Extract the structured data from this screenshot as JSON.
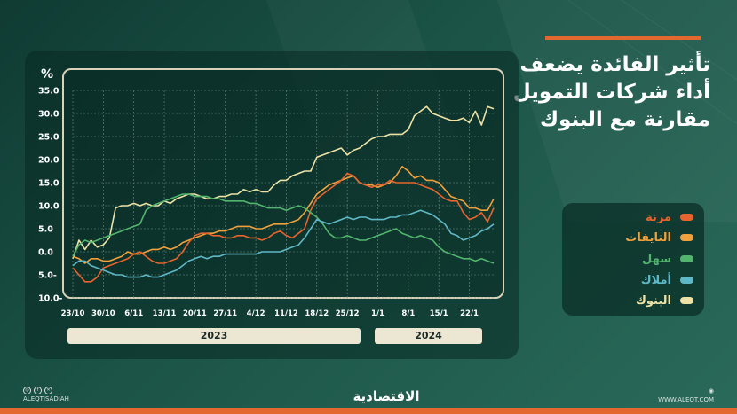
{
  "title_lines": [
    "تأثير الفائدة يضعف",
    "أداء شركات التمويل",
    "مقارنة مع البنوك"
  ],
  "brand": "الاقتصادية",
  "footer": {
    "handle": "ALEQTISADIAH",
    "website": "WWW.ALEQT.COM"
  },
  "colors": {
    "title_bar": "#e2682f",
    "frame": "#d8d2b8",
    "grid": "#6f8f84",
    "axis_text": "#ffffff"
  },
  "chart_data": {
    "type": "line",
    "ylabel": "%",
    "ylim": [
      -10,
      35
    ],
    "yticks": [
      35,
      30,
      25,
      20,
      15,
      10,
      5,
      0,
      -5,
      -10
    ],
    "ytick_labels": [
      "35.0",
      "30.0",
      "25.0",
      "20.0",
      "15.0",
      "10.0",
      "5.0",
      "0.0",
      "5.0-",
      "10.0-"
    ],
    "x_tick_labels": [
      "23/10",
      "30/10",
      "6/11",
      "13/11",
      "20/11",
      "27/11",
      "4/12",
      "11/12",
      "18/12",
      "25/12",
      "1/1",
      "8/1",
      "15/1",
      "22/1"
    ],
    "x_tick_positions": [
      0,
      5,
      10,
      15,
      20,
      25,
      30,
      35,
      40,
      45,
      50,
      55,
      60,
      65
    ],
    "x_max": 69,
    "years": [
      {
        "label": "2023",
        "from": 0,
        "to": 49
      },
      {
        "label": "2024",
        "from": 51,
        "to": 69
      }
    ],
    "grid": true,
    "legend_position": "right",
    "series": [
      {
        "name": "البنوك",
        "color": "#ece2a6",
        "values": [
          -1.5,
          2.5,
          0.5,
          2.5,
          1.0,
          1.5,
          3.0,
          9.5,
          10.0,
          10.0,
          10.5,
          10.0,
          10.5,
          10.0,
          10.0,
          11.0,
          10.5,
          11.5,
          12.0,
          12.5,
          12.5,
          12.0,
          11.5,
          11.5,
          12.0,
          12.0,
          12.5,
          12.5,
          13.5,
          13.0,
          13.5,
          13.0,
          13.0,
          14.5,
          15.5,
          15.5,
          16.5,
          17.0,
          17.5,
          17.5,
          20.5,
          21.0,
          21.5,
          22.0,
          22.5,
          21.0,
          22.0,
          22.5,
          23.5,
          24.5,
          25.0,
          25.0,
          25.5,
          25.5,
          25.5,
          26.5,
          29.5,
          30.5,
          31.5,
          30.0,
          29.5,
          29.0,
          28.5,
          28.5,
          29.0,
          28.0,
          30.5,
          27.5,
          31.5,
          31.0
        ]
      },
      {
        "name": "النايفات",
        "color": "#f0a03c",
        "values": [
          -1.0,
          -1.5,
          -2.5,
          -1.5,
          -1.5,
          -2.0,
          -2.0,
          -1.5,
          -1.0,
          0.0,
          -0.5,
          -0.5,
          0.0,
          0.5,
          0.5,
          1.0,
          0.5,
          1.0,
          2.0,
          2.5,
          3.0,
          3.5,
          4.0,
          4.0,
          4.5,
          4.5,
          5.0,
          5.5,
          5.5,
          5.5,
          5.0,
          5.0,
          5.5,
          6.0,
          6.0,
          6.0,
          6.5,
          7.0,
          8.5,
          10.5,
          12.5,
          13.5,
          14.5,
          15.0,
          15.5,
          16.0,
          16.5,
          15.0,
          14.5,
          14.5,
          14.0,
          14.5,
          15.0,
          16.5,
          18.5,
          17.5,
          16.0,
          16.5,
          15.5,
          15.5,
          15.0,
          13.5,
          12.0,
          11.5,
          11.0,
          9.5,
          9.5,
          9.0,
          9.0,
          11.5
        ]
      },
      {
        "name": "مرنة",
        "color": "#e8632e",
        "values": [
          -3.5,
          -5.0,
          -6.5,
          -6.5,
          -5.5,
          -3.5,
          -3.0,
          -2.5,
          -2.0,
          -1.5,
          -0.5,
          0.0,
          -1.0,
          -2.0,
          -2.5,
          -2.5,
          -2.0,
          -1.5,
          0.0,
          2.0,
          3.5,
          4.0,
          4.0,
          3.5,
          3.5,
          3.0,
          3.0,
          3.5,
          3.5,
          3.0,
          3.0,
          2.5,
          3.0,
          4.0,
          4.5,
          3.5,
          3.0,
          4.0,
          5.0,
          9.0,
          11.5,
          12.5,
          13.5,
          14.5,
          15.5,
          17.0,
          16.5,
          15.0,
          14.5,
          14.0,
          14.5,
          14.5,
          15.5,
          15.0,
          15.0,
          15.0,
          15.0,
          14.5,
          14.0,
          13.5,
          12.5,
          11.5,
          11.0,
          11.0,
          8.5,
          7.0,
          7.5,
          8.5,
          6.5,
          9.5
        ]
      },
      {
        "name": "سهل",
        "color": "#52b46e",
        "values": [
          -1.0,
          1.5,
          2.5,
          2.0,
          2.5,
          3.0,
          3.5,
          4.0,
          4.5,
          5.0,
          5.5,
          6.0,
          9.0,
          10.0,
          10.5,
          11.0,
          11.5,
          12.0,
          12.5,
          12.5,
          12.0,
          12.0,
          12.0,
          11.5,
          11.5,
          11.0,
          11.0,
          11.0,
          11.0,
          10.5,
          10.5,
          10.0,
          9.5,
          9.5,
          9.5,
          9.0,
          9.5,
          10.0,
          9.5,
          8.5,
          7.5,
          6.0,
          4.0,
          3.0,
          3.0,
          3.5,
          3.0,
          2.5,
          2.5,
          3.0,
          3.5,
          4.0,
          4.5,
          5.0,
          4.0,
          3.5,
          3.0,
          3.5,
          3.0,
          2.5,
          1.0,
          0.0,
          -0.5,
          -1.0,
          -1.5,
          -1.5,
          -2.0,
          -1.5,
          -2.0,
          -2.5
        ]
      },
      {
        "name": "أملاك",
        "color": "#5fb8c6",
        "values": [
          -3.0,
          -2.0,
          -2.0,
          -3.0,
          -3.5,
          -4.0,
          -4.5,
          -5.0,
          -5.0,
          -5.5,
          -5.5,
          -5.5,
          -5.0,
          -5.5,
          -5.5,
          -5.0,
          -4.5,
          -4.0,
          -3.0,
          -2.0,
          -1.5,
          -1.0,
          -1.5,
          -1.0,
          -1.0,
          -0.5,
          -0.5,
          -0.5,
          -0.5,
          -0.5,
          -0.5,
          0.0,
          0.0,
          0.0,
          0.0,
          0.5,
          1.0,
          1.5,
          3.0,
          5.0,
          7.0,
          6.5,
          6.0,
          6.5,
          7.0,
          7.5,
          7.0,
          7.5,
          7.5,
          7.0,
          7.0,
          7.0,
          7.5,
          7.5,
          8.0,
          8.0,
          8.5,
          9.0,
          8.5,
          8.0,
          7.0,
          6.0,
          4.0,
          3.5,
          2.5,
          3.0,
          3.5,
          4.5,
          5.0,
          6.0
        ]
      }
    ]
  }
}
